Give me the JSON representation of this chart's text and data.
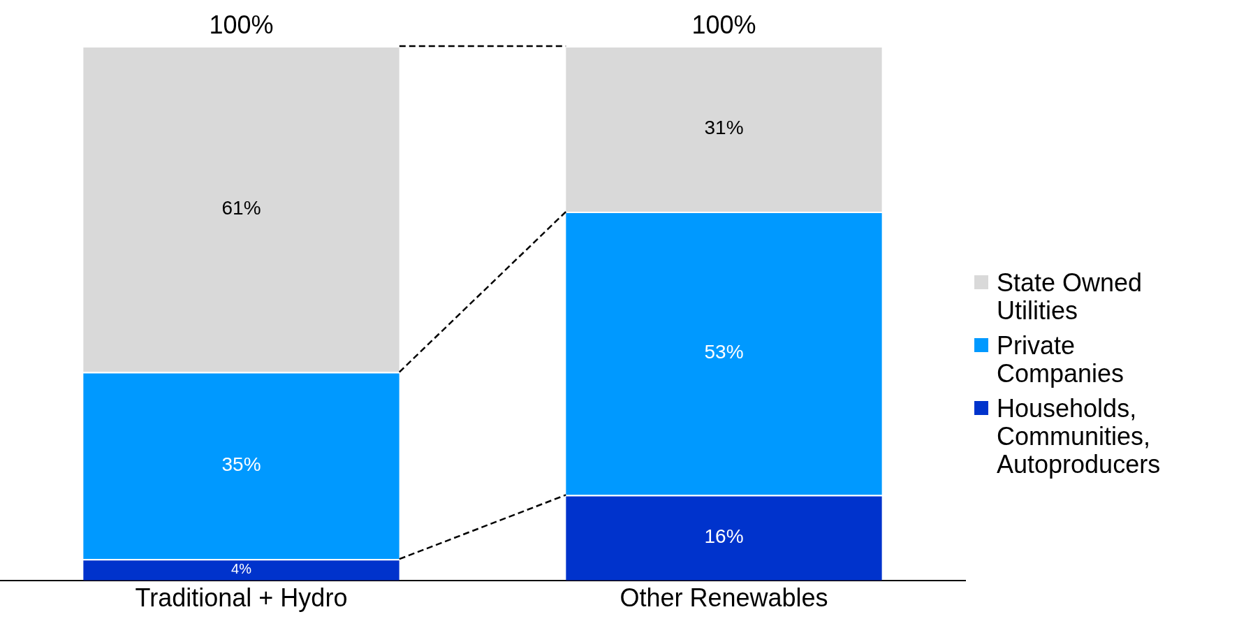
{
  "chart_data": {
    "type": "bar",
    "stacked": true,
    "categories": [
      "Traditional + Hydro",
      "Other Renewables"
    ],
    "series": [
      {
        "name": "Households, Communities, Autoproducers",
        "color": "#0033cc",
        "values": [
          4,
          16
        ],
        "value_labels": [
          "4%",
          "16%"
        ]
      },
      {
        "name": "Private Companies",
        "color": "#0099ff",
        "values": [
          35,
          53
        ],
        "value_labels": [
          "35%",
          "53%"
        ]
      },
      {
        "name": "State Owned Utilities",
        "color": "#d9d9d9",
        "values": [
          61,
          31
        ],
        "value_labels": [
          "61%",
          "31%"
        ]
      }
    ],
    "totals": [
      "100%",
      "100%"
    ],
    "legend": "right",
    "grid": false
  }
}
